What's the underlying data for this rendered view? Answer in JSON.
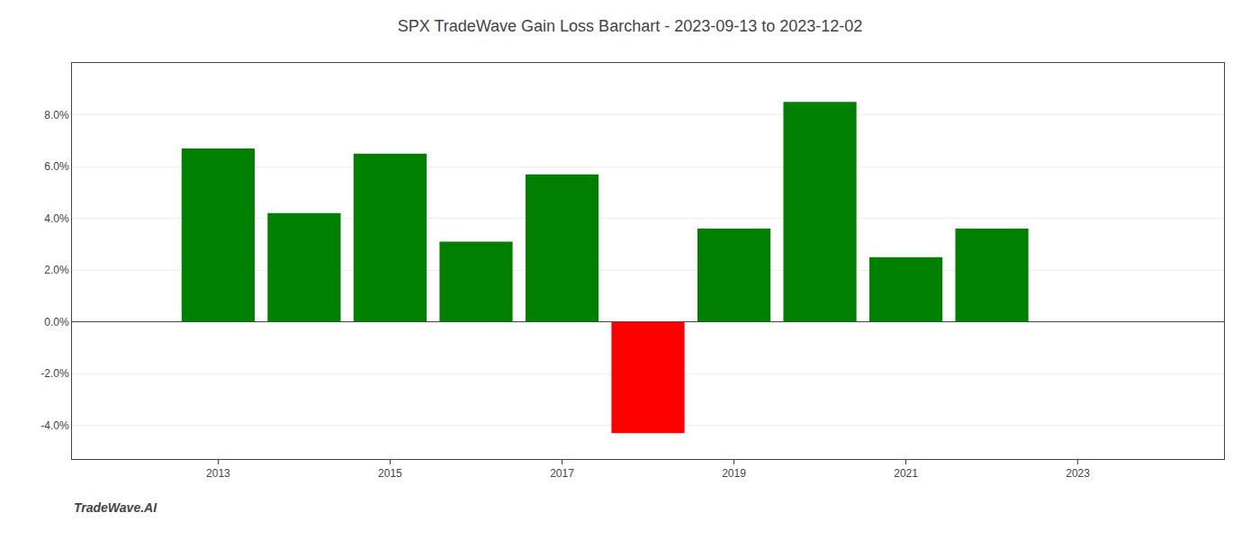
{
  "chart_data": {
    "type": "bar",
    "title": "SPX TradeWave Gain Loss Barchart - 2023-09-13 to 2023-12-02",
    "x": [
      2013,
      2014,
      2015,
      2016,
      2017,
      2018,
      2019,
      2020,
      2021,
      2022
    ],
    "values": [
      0.067,
      0.042,
      0.065,
      0.031,
      0.057,
      -0.043,
      0.036,
      0.085,
      0.025,
      0.036
    ],
    "colors": [
      "#008000",
      "#008000",
      "#008000",
      "#008000",
      "#008000",
      "#ff0000",
      "#008000",
      "#008000",
      "#008000",
      "#008000"
    ],
    "xlim": [
      2011.3,
      2024.7
    ],
    "xticks": [
      2013,
      2015,
      2017,
      2019,
      2021,
      2023
    ],
    "ylim": [
      -0.053,
      0.1
    ],
    "yticks": [
      {
        "value": -0.04,
        "label": "-4.0%"
      },
      {
        "value": -0.02,
        "label": "-2.0%"
      },
      {
        "value": 0.0,
        "label": "0.0%"
      },
      {
        "value": 0.02,
        "label": "2.0%"
      },
      {
        "value": 0.04,
        "label": "4.0%"
      },
      {
        "value": 0.06,
        "label": "6.0%"
      },
      {
        "value": 0.08,
        "label": "8.0%"
      }
    ],
    "grid": true,
    "annotations": [
      "TradeWave.AI"
    ]
  }
}
